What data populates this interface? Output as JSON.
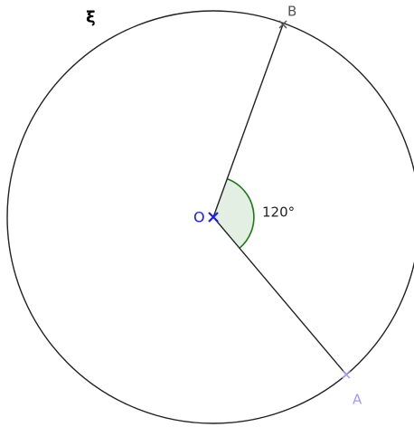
{
  "curve_label": "ξ",
  "angle_label": "120°",
  "points": [
    {
      "label": "B"
    },
    {
      "label": "O"
    },
    {
      "label": "A"
    }
  ]
}
